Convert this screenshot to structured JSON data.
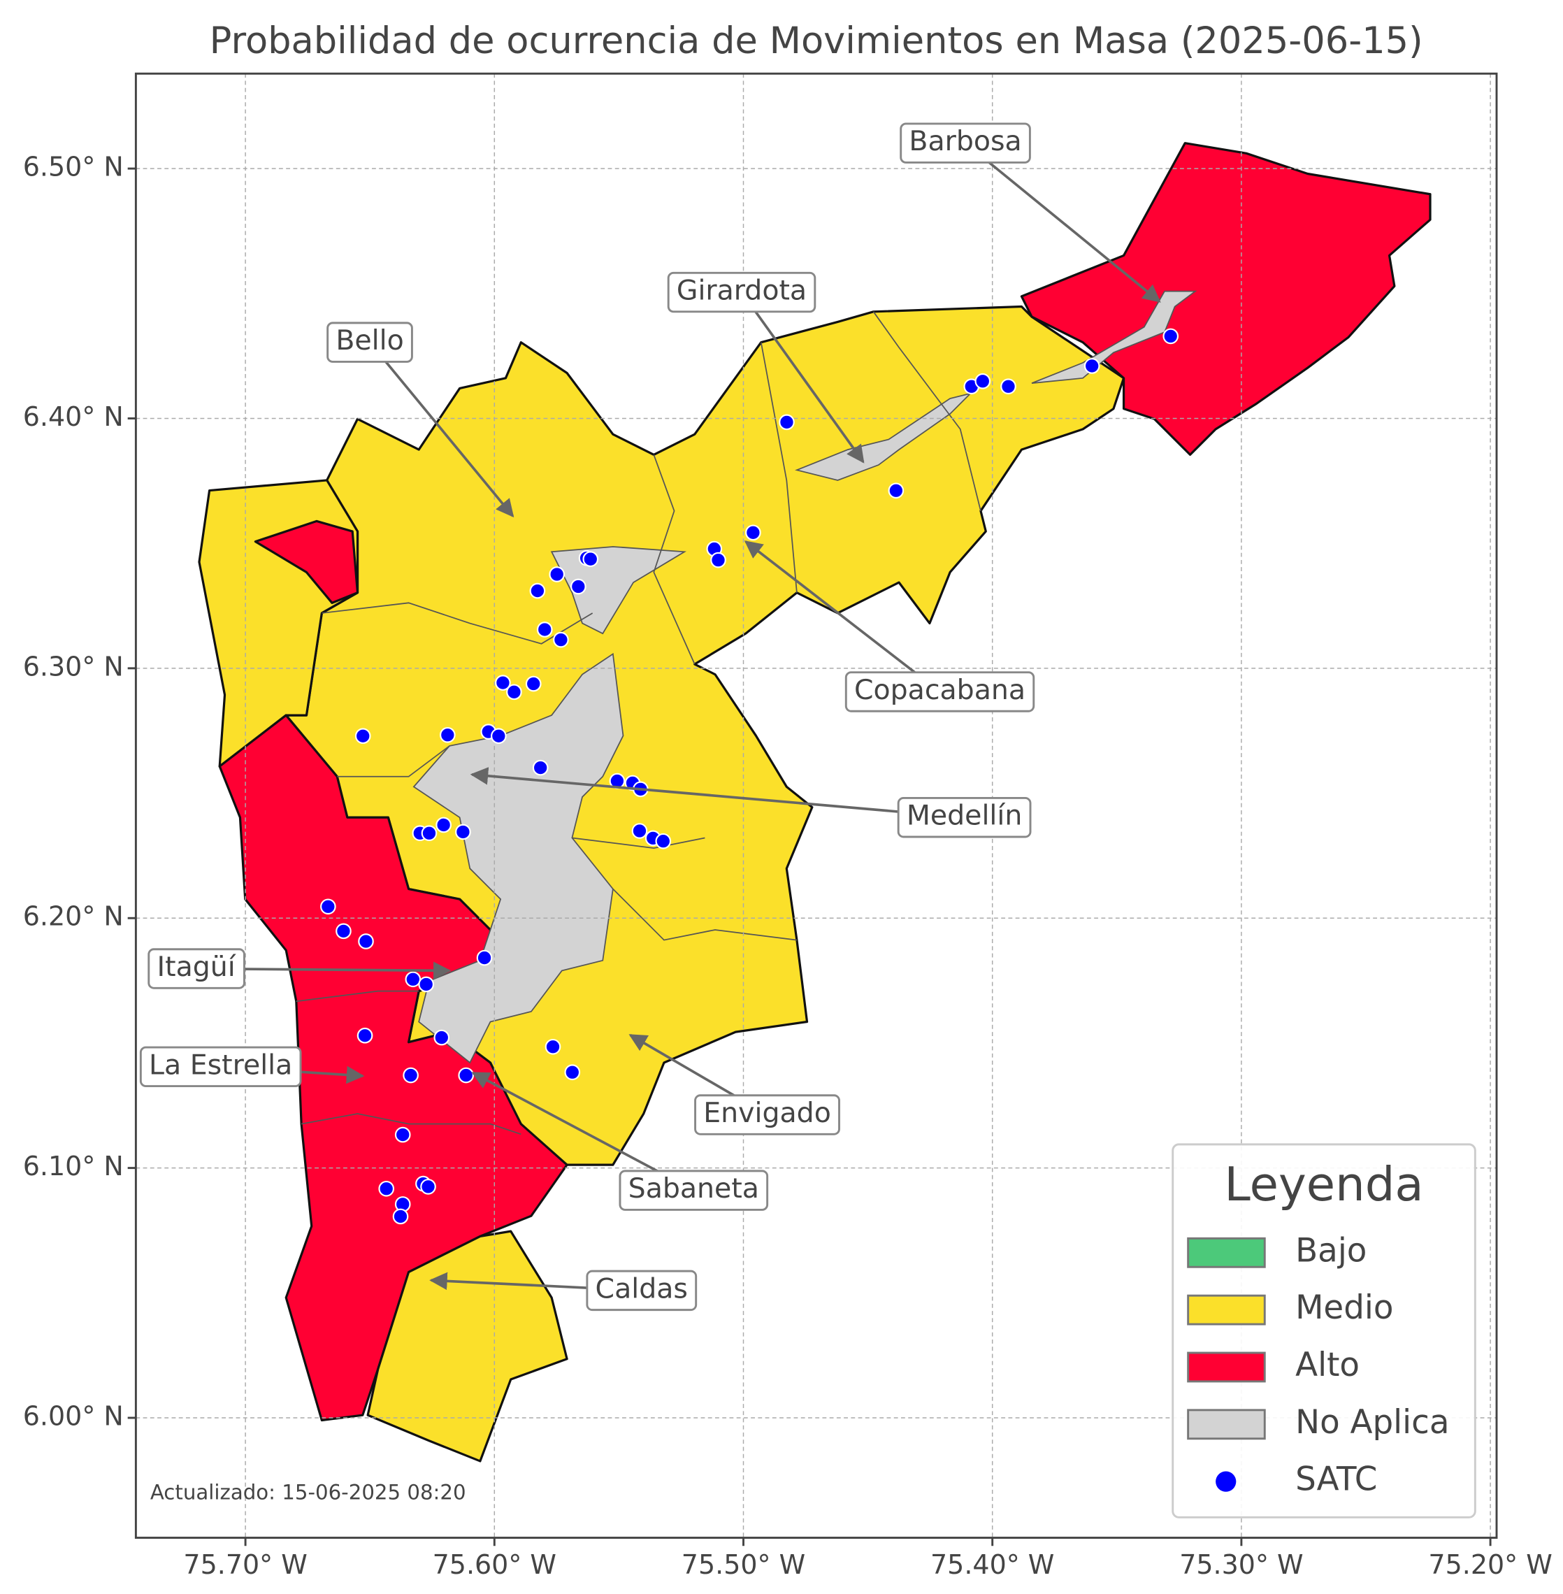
{
  "title": "Probabilidad de ocurrencia de Movimientos en Masa (2025-06-15)",
  "xlim": [
    -75.744,
    -75.1975
  ],
  "ylim": [
    5.952,
    6.538
  ],
  "xticks": [
    {
      "value": -75.7,
      "label": "75.70° W"
    },
    {
      "value": -75.6,
      "label": "75.60° W"
    },
    {
      "value": -75.5,
      "label": "75.50° W"
    },
    {
      "value": -75.4,
      "label": "75.40° W"
    },
    {
      "value": -75.3,
      "label": "75.30° W"
    },
    {
      "value": -75.2,
      "label": "75.20° W"
    }
  ],
  "yticks": [
    {
      "value": 6.5,
      "label": "6.50° N"
    },
    {
      "value": 6.4,
      "label": "6.40° N"
    },
    {
      "value": 6.3,
      "label": "6.30° N"
    },
    {
      "value": 6.2,
      "label": "6.20° N"
    },
    {
      "value": 6.1,
      "label": "6.10° N"
    },
    {
      "value": 6.0,
      "label": "6.00° N"
    }
  ],
  "grid": true,
  "annotations": [
    "Barbosa",
    "Girardota",
    "Bello",
    "Copacabana",
    "Medellín",
    "Itagüí",
    "La Estrella",
    "Envigado",
    "Sabaneta",
    "Caldas"
  ],
  "legend": {
    "title": "Leyenda",
    "items": [
      {
        "name": "Bajo",
        "color": "#4cc97a"
      },
      {
        "name": "Medio",
        "color": "#fbe02a"
      },
      {
        "name": "Alto",
        "color": "#ff0033"
      },
      {
        "name": "No Aplica",
        "color": "#d3d3d3"
      },
      {
        "name": "SATC",
        "color": "#0000ff"
      }
    ]
  },
  "satc": {
    "lon": [
      -75.3284,
      -75.36,
      -75.4084,
      -75.4039,
      -75.3936,
      -75.4826,
      -75.4387,
      -75.4961,
      -75.5117,
      -75.5101,
      -75.563,
      -75.5614,
      -75.5749,
      -75.5663,
      -75.5827,
      -75.5798,
      -75.5733,
      -75.5966,
      -75.5921,
      -75.5843,
      -75.6528,
      -75.6188,
      -75.6024,
      -75.5983,
      -75.5815,
      -75.5507,
      -75.5445,
      -75.5413,
      -75.6299,
      -75.6262,
      -75.6204,
      -75.6126,
      -75.5417,
      -75.5363,
      -75.5322,
      -75.6668,
      -75.6606,
      -75.6516,
      -75.604,
      -75.6327,
      -75.6274,
      -75.652,
      -75.6212,
      -75.5765,
      -75.5687,
      -75.6336,
      -75.6114,
      -75.6368,
      -75.6434,
      -75.6286,
      -75.6266,
      -75.6368,
      -75.6377
    ],
    "lat": [
      6.4329,
      6.421,
      6.4128,
      6.4149,
      6.4128,
      6.3985,
      6.3711,
      6.3543,
      6.3478,
      6.3433,
      6.3441,
      6.3437,
      6.3376,
      6.3327,
      6.331,
      6.3155,
      6.3114,
      6.2942,
      6.2905,
      6.2938,
      6.2729,
      6.2733,
      6.2746,
      6.2729,
      6.2602,
      6.2549,
      6.2541,
      6.2516,
      6.234,
      6.234,
      6.2373,
      6.2345,
      6.2349,
      6.232,
      6.2308,
      6.2046,
      6.1948,
      6.1907,
      6.1841,
      6.1755,
      6.1735,
      6.153,
      6.1522,
      6.1485,
      6.1383,
      6.1371,
      6.1371,
      6.1133,
      6.0917,
      6.0937,
      6.0925,
      6.0855,
      6.0806
    ]
  },
  "note": "Actualizado: 15-06-2025 08:20"
}
